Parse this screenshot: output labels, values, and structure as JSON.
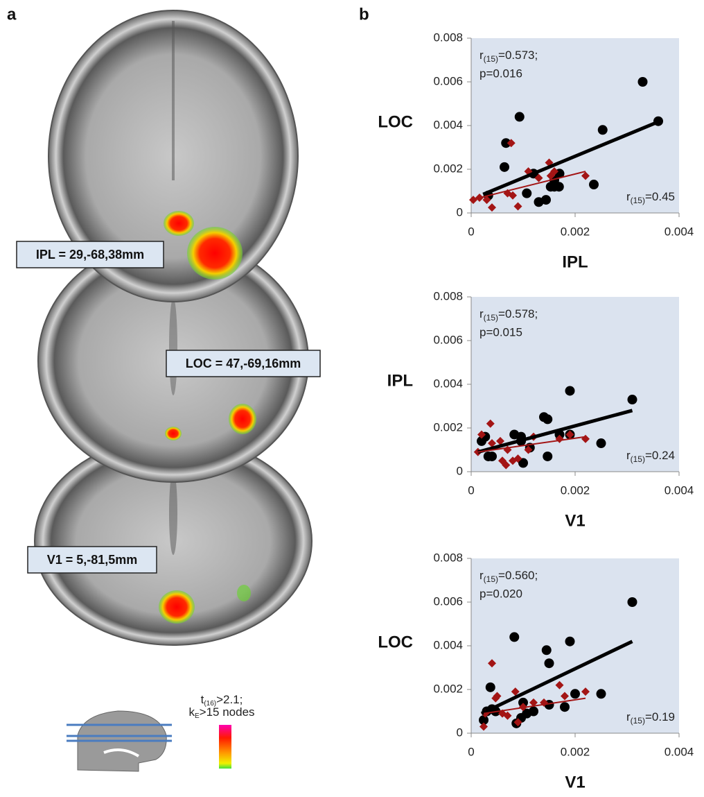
{
  "panels": {
    "a": "a",
    "b": "b"
  },
  "brain_labels": [
    "IPL = 29,-68,38mm",
    "LOC = 47,-69,16mm",
    "V1 = 5,-81,5mm"
  ],
  "threshold": {
    "t_symbol": "t",
    "t_sub": "(16)",
    "t_text": ">2.1;",
    "k_symbol": "k",
    "k_sub": "E",
    "k_text": ">15 nodes"
  },
  "chart_data": [
    {
      "type": "scatter",
      "x_label": "IPL",
      "y_label": "LOC",
      "xlim": [
        0,
        0.004
      ],
      "ylim": [
        0,
        0.008
      ],
      "xticks": [
        0,
        0.002,
        0.004
      ],
      "yticks": [
        0,
        0.002,
        0.004,
        0.006,
        0.008
      ],
      "background": "#dbe3ef",
      "stat_main": {
        "symbol": "r",
        "sub": "(15)",
        "text": "=0.573;",
        "p": "p=0.016"
      },
      "stat_second": {
        "symbol": "r",
        "sub": "(15)",
        "text": "=0.45"
      },
      "series": [
        {
          "color": "#000000",
          "marker": "circle",
          "x": [
            0.00033,
            0.00064,
            0.00067,
            0.00093,
            0.00107,
            0.0012,
            0.0013,
            0.00144,
            0.00153,
            0.0016,
            0.00169,
            0.0017,
            0.00236,
            0.00253,
            0.0033,
            0.0036,
            0.0016
          ],
          "values": [
            0.0008,
            0.0021,
            0.0032,
            0.0044,
            0.0009,
            0.0018,
            0.0005,
            0.0006,
            0.0012,
            0.0012,
            0.0012,
            0.0018,
            0.0013,
            0.0038,
            0.006,
            0.0042,
            0.0015
          ],
          "fit": {
            "x": [
              0.00023,
              0.00367
            ],
            "y": [
              0.00085,
              0.00424
            ]
          }
        },
        {
          "color": "#a31515",
          "marker": "diamond",
          "x": [
            4e-05,
            0.00016,
            0.0003,
            0.0004,
            0.0007,
            0.00077,
            0.0008,
            0.0009,
            0.0011,
            0.0013,
            0.0015,
            0.00153,
            0.0016,
            0.0022
          ],
          "values": [
            0.0006,
            0.0007,
            0.0006,
            0.00025,
            0.0009,
            0.0032,
            0.0008,
            0.0003,
            0.0019,
            0.0016,
            0.0023,
            0.0017,
            0.0019,
            0.0017
          ],
          "fit": {
            "x": [
              0,
              0.0022
            ],
            "y": [
              0.0006,
              0.0019
            ]
          }
        }
      ]
    },
    {
      "type": "scatter",
      "x_label": "V1",
      "y_label": "IPL",
      "xlim": [
        0,
        0.004
      ],
      "ylim": [
        0,
        0.008
      ],
      "xticks": [
        0,
        0.002,
        0.004
      ],
      "yticks": [
        0,
        0.002,
        0.004,
        0.006,
        0.008
      ],
      "background": "#dbe3ef",
      "stat_main": {
        "symbol": "r",
        "sub": "(15)",
        "text": "=0.578;",
        "p": "p=0.015"
      },
      "stat_second": {
        "symbol": "r",
        "sub": "(15)",
        "text": "=0.24"
      },
      "series": [
        {
          "color": "#000000",
          "marker": "circle",
          "x": [
            0.0002,
            0.00027,
            0.00033,
            0.0004,
            0.00083,
            0.00096,
            0.00096,
            0.001,
            0.00113,
            0.0014,
            0.00147,
            0.00147,
            0.0017,
            0.0019,
            0.0019,
            0.0025,
            0.0031
          ],
          "values": [
            0.0014,
            0.0016,
            0.0007,
            0.0007,
            0.0017,
            0.0014,
            0.0016,
            0.0004,
            0.0011,
            0.0025,
            0.0024,
            0.0007,
            0.0017,
            0.0037,
            0.0017,
            0.0013,
            0.0033
          ],
          "fit": {
            "x": [
              0.00013,
              0.0031
            ],
            "y": [
              0.0009,
              0.0028
            ]
          }
        },
        {
          "color": "#a31515",
          "marker": "diamond",
          "x": [
            0.00013,
            0.0002,
            0.00037,
            0.0004,
            0.00056,
            0.0006,
            0.00067,
            0.0007,
            0.0008,
            0.0009,
            0.0011,
            0.0012,
            0.0017,
            0.0019,
            0.0022
          ],
          "values": [
            0.0009,
            0.0017,
            0.0022,
            0.0013,
            0.0014,
            0.0005,
            0.0003,
            0.001,
            0.0005,
            0.0006,
            0.001,
            0.0016,
            0.0015,
            0.0017,
            0.0015
          ],
          "fit": {
            "x": [
              0.00013,
              0.0022
            ],
            "y": [
              0.0009,
              0.0016
            ]
          }
        }
      ]
    },
    {
      "type": "scatter",
      "x_label": "V1",
      "y_label": "LOC",
      "xlim": [
        0,
        0.004
      ],
      "ylim": [
        0,
        0.008
      ],
      "xticks": [
        0,
        0.002,
        0.004
      ],
      "yticks": [
        0,
        0.002,
        0.004,
        0.006,
        0.008
      ],
      "background": "#dbe3ef",
      "stat_main": {
        "symbol": "r",
        "sub": "(15)",
        "text": "=0.560;",
        "p": "p=0.020"
      },
      "stat_second": {
        "symbol": "r",
        "sub": "(15)",
        "text": "=0.19"
      },
      "series": [
        {
          "color": "#000000",
          "marker": "circle",
          "x": [
            0.00024,
            0.0003,
            0.00037,
            0.0004,
            0.00047,
            0.00083,
            0.00087,
            0.00096,
            0.001,
            0.00107,
            0.0012,
            0.00145,
            0.0015,
            0.0015,
            0.0018,
            0.0019,
            0.002,
            0.0025,
            0.0031
          ],
          "values": [
            0.0006,
            0.001,
            0.0021,
            0.0011,
            0.001,
            0.0044,
            0.00045,
            0.0007,
            0.0014,
            0.0009,
            0.001,
            0.0038,
            0.0032,
            0.0013,
            0.0012,
            0.0042,
            0.0018,
            0.0018,
            0.006
          ],
          "fit": {
            "x": [
              0.0002,
              0.0031
            ],
            "y": [
              0.0009,
              0.0042
            ]
          }
        },
        {
          "color": "#a31515",
          "marker": "diamond",
          "x": [
            0.00024,
            0.00027,
            0.0004,
            0.00047,
            0.0005,
            0.0006,
            0.0007,
            0.00085,
            0.0009,
            0.001,
            0.0012,
            0.0014,
            0.0017,
            0.0018,
            0.0022
          ],
          "values": [
            0.0003,
            0.0009,
            0.0032,
            0.0016,
            0.0017,
            0.0009,
            0.0008,
            0.0019,
            0.0005,
            0.0012,
            0.0014,
            0.0014,
            0.0022,
            0.0017,
            0.0019
          ],
          "fit": {
            "x": [
              0.00024,
              0.0022
            ],
            "y": [
              0.0009,
              0.0016
            ]
          }
        }
      ]
    }
  ]
}
